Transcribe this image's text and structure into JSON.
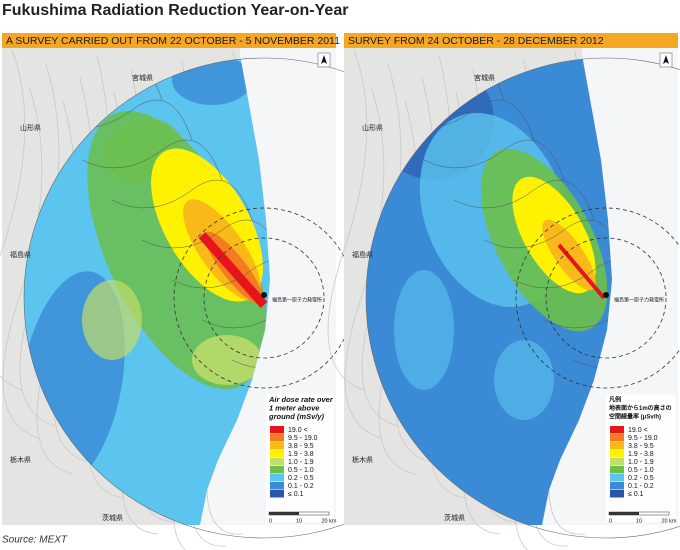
{
  "title": "Fukushima Radiation Reduction Year-on-Year",
  "source": "Source: MEXT",
  "legend_colors": [
    "#e8141c",
    "#f47b20",
    "#f9b919",
    "#fff200",
    "#c3dd6a",
    "#6cc04a",
    "#5bc4ef",
    "#3a8ad6",
    "#2a55a8"
  ],
  "panels": [
    {
      "header": "A SURVEY CARRIED OUT FROM 22 OCTOBER - 5 NOVEMBER 2011",
      "legend_title": [
        "Air dose rate over",
        "1 meter above",
        "ground (mSv/y)"
      ],
      "legend": [
        "19.0 <",
        "9.5 - 19.0",
        "3.8 - 9.5",
        "1.9 - 3.8",
        "1.0 - 1.9",
        "0.5 - 1.0",
        "0.2 - 0.5",
        "0.1 - 0.2",
        "≤ 0.1"
      ],
      "places": [
        "宮城県",
        "山形県",
        "福島県",
        "栃木県",
        "茨城県"
      ],
      "plant": "福島第一原子力発電所",
      "scale": [
        "0",
        "10",
        "20 km"
      ]
    },
    {
      "header": "SURVEY FROM 24 OCTOBER - 28 DECEMBER 2012",
      "legend_title": [
        "凡例",
        "地表面から1mの高さの",
        "空間線量率 (μSv/h)"
      ],
      "legend": [
        "19.0 <",
        "9.5 - 19.0",
        "3.8 - 9.5",
        "1.9 - 3.8",
        "1.0 - 1.9",
        "0.5 - 1.0",
        "0.2 - 0.5",
        "0.1 - 0.2",
        "≤ 0.1"
      ],
      "places": [
        "宮城県",
        "山形県",
        "福島県",
        "栃木県",
        "茨城県"
      ],
      "plant": "福島第一原子力発電所",
      "scale": [
        "0",
        "10",
        "20 km"
      ]
    }
  ]
}
